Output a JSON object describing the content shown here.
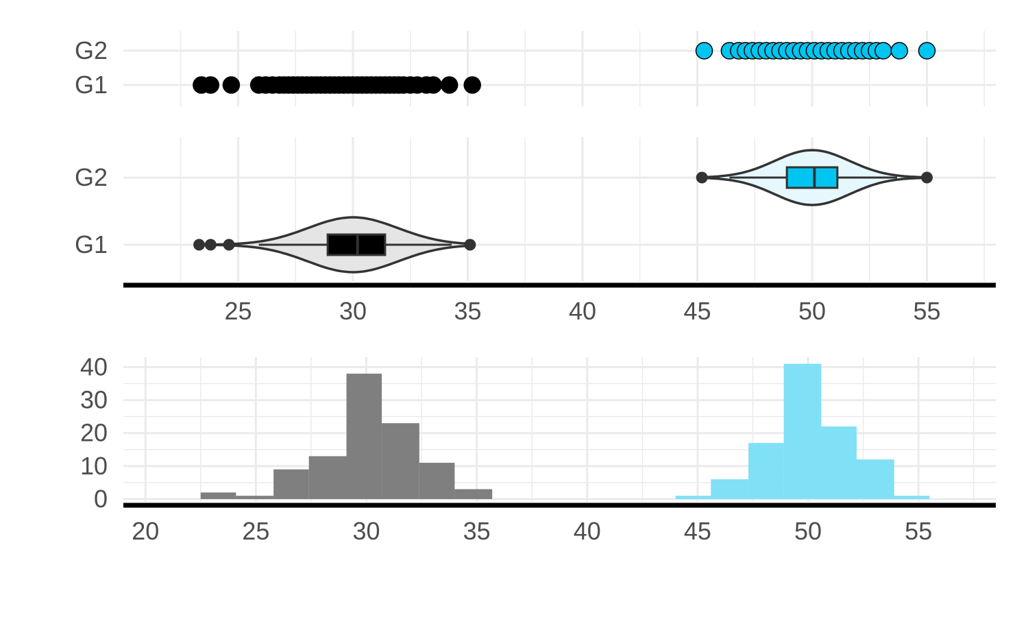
{
  "colors": {
    "g1": "#000000",
    "g2": "#00c5f0",
    "g1_violin": "#e5e5e5",
    "g2_violin": "#e6f8fe",
    "hist_g1": "#7f7f7f",
    "hist_g2": "#80e0f6",
    "grid": "#ebebeb",
    "axis": "#000000",
    "outline": "#333333"
  },
  "chart_data": [
    {
      "type": "scatter",
      "name": "strip",
      "categories": [
        "G1",
        "G2"
      ],
      "series": [
        {
          "category": "G1",
          "x": [
            23.4,
            23.8,
            24.7,
            25.9,
            26.2,
            26.5,
            26.8,
            27.0,
            27.2,
            27.4,
            27.6,
            27.8,
            28.0,
            28.2,
            28.4,
            28.6,
            28.8,
            29.0,
            29.2,
            29.4,
            29.6,
            29.8,
            30.0,
            30.2,
            30.4,
            30.6,
            30.8,
            31.0,
            31.2,
            31.4,
            31.6,
            31.8,
            32.0,
            32.2,
            32.5,
            32.8,
            33.2,
            33.5,
            34.2,
            35.2
          ]
        },
        {
          "category": "G2",
          "x": [
            45.3,
            46.4,
            46.8,
            47.1,
            47.4,
            47.7,
            48.0,
            48.3,
            48.6,
            48.9,
            49.2,
            49.5,
            49.8,
            50.1,
            50.4,
            50.7,
            51.0,
            51.3,
            51.6,
            51.9,
            52.2,
            52.5,
            52.8,
            53.1,
            53.8,
            55.0
          ]
        }
      ],
      "xlim": [
        20.0,
        58.0
      ]
    },
    {
      "type": "violin",
      "name": "violin-box",
      "categories": [
        "G1",
        "G2"
      ],
      "boxes": [
        {
          "category": "G1",
          "min": 25.9,
          "q1": 28.9,
          "median": 30.2,
          "q3": 31.4,
          "max": 34.3,
          "outliers": [
            23.3,
            23.8,
            24.6,
            35.1
          ],
          "violin_range": [
            23.3,
            35.1
          ],
          "violin_center": 30.0
        },
        {
          "category": "G2",
          "min": 46.4,
          "q1": 48.9,
          "median": 50.1,
          "q3": 51.1,
          "max": 53.7,
          "outliers": [
            45.2,
            55.0
          ],
          "violin_range": [
            45.2,
            55.0
          ],
          "violin_center": 50.0
        }
      ],
      "xlim": [
        20.0,
        58.0
      ],
      "xticks": [
        25,
        30,
        35,
        40,
        45,
        50,
        55
      ],
      "xtick_labels": [
        "25",
        "30",
        "35",
        "40",
        "45",
        "50",
        "55"
      ]
    },
    {
      "type": "bar",
      "name": "histogram",
      "series": [
        {
          "category": "G1",
          "bins": [
            [
              22.5,
              24.1
            ],
            [
              24.1,
              25.8
            ],
            [
              25.8,
              27.4
            ],
            [
              27.4,
              29.1
            ],
            [
              29.1,
              30.7
            ],
            [
              30.7,
              32.4
            ],
            [
              32.4,
              34.0
            ],
            [
              34.0,
              35.7
            ]
          ],
          "counts": [
            2,
            1,
            9,
            13,
            38,
            23,
            11,
            3
          ]
        },
        {
          "category": "G2",
          "bins": [
            [
              44.0,
              45.6
            ],
            [
              45.6,
              47.3
            ],
            [
              47.3,
              48.9
            ],
            [
              48.9,
              50.6
            ],
            [
              50.6,
              52.2
            ],
            [
              52.2,
              53.9
            ],
            [
              53.9,
              55.5
            ]
          ],
          "counts": [
            1,
            6,
            17,
            41,
            22,
            12,
            1
          ]
        }
      ],
      "xlim": [
        19.0,
        58.5
      ],
      "ylim": [
        0,
        43
      ],
      "xticks": [
        20,
        25,
        30,
        35,
        40,
        45,
        50,
        55
      ],
      "xtick_labels": [
        "20",
        "25",
        "30",
        "35",
        "40",
        "45",
        "50",
        "55"
      ],
      "yticks": [
        0,
        10,
        20,
        30,
        40
      ],
      "ytick_labels": [
        "0",
        "10",
        "20",
        "30",
        "40"
      ]
    }
  ]
}
